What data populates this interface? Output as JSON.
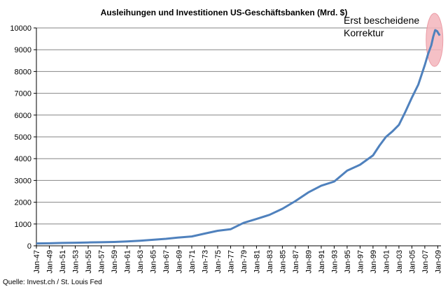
{
  "chart_data": {
    "type": "line",
    "title": "Ausleihungen und Investitionen US-Geschäftsbanken (Mrd. $)",
    "source": "Quelle: Invest.ch / St. Louis Fed",
    "annotation": [
      "Erst bescheidene",
      "Korrektur"
    ],
    "ylim": [
      0,
      10000
    ],
    "yticks": [
      0,
      1000,
      2000,
      3000,
      4000,
      5000,
      6000,
      7000,
      8000,
      9000,
      10000
    ],
    "ytick_labels": [
      "0",
      "1000",
      "2000",
      "3000",
      "4000",
      "5000",
      "6000",
      "7000",
      "8000",
      "9000",
      "10000"
    ],
    "xlim": [
      1947.0,
      2009.5
    ],
    "xticks": [
      1947,
      1949,
      1951,
      1953,
      1955,
      1957,
      1959,
      1961,
      1963,
      1965,
      1967,
      1969,
      1971,
      1973,
      1975,
      1977,
      1979,
      1981,
      1983,
      1985,
      1987,
      1989,
      1991,
      1993,
      1995,
      1997,
      1999,
      2001,
      2003,
      2005,
      2007,
      2009
    ],
    "xtick_labels": [
      "Jan-47",
      "Jan-49",
      "Jan-51",
      "Jan-53",
      "Jan-55",
      "Jan-57",
      "Jan-59",
      "Jan-61",
      "Jan-63",
      "Jan-65",
      "Jan-67",
      "Jan-69",
      "Jan-71",
      "Jan-73",
      "Jan-75",
      "Jan-77",
      "Jan-79",
      "Jan-81",
      "Jan-83",
      "Jan-85",
      "Jan-87",
      "Jan-89",
      "Jan-91",
      "Jan-93",
      "Jan-95",
      "Jan-97",
      "Jan-99",
      "Jan-01",
      "Jan-03",
      "Jan-05",
      "Jan-07",
      "Jan-09"
    ],
    "grid": true,
    "colors": {
      "line": "#4f81bd",
      "grid": "#868686",
      "highlight_fill": "#f4b6bd",
      "highlight_stroke": "#e88a96"
    },
    "series": [
      {
        "x": [
          1947,
          1949,
          1951,
          1953,
          1955,
          1957,
          1959,
          1961,
          1963,
          1965,
          1967,
          1969,
          1971,
          1973,
          1975,
          1977,
          1979,
          1981,
          1983,
          1985,
          1987,
          1989,
          1991,
          1993,
          1995,
          1997,
          1999,
          2000,
          2001,
          2002,
          2003,
          2004,
          2005,
          2006,
          2007,
          2007.5,
          2008,
          2008.3,
          2008.6,
          2008.9,
          2009.1,
          2009.3
        ],
        "y": [
          110,
          115,
          130,
          140,
          155,
          165,
          175,
          200,
          230,
          275,
          320,
          380,
          430,
          560,
          690,
          760,
          1050,
          1230,
          1420,
          1700,
          2050,
          2450,
          2760,
          2950,
          3450,
          3720,
          4150,
          4600,
          5000,
          5250,
          5550,
          6150,
          6800,
          7400,
          8300,
          8800,
          9200,
          9600,
          9900,
          9850,
          9750,
          9650
        ]
      }
    ]
  }
}
